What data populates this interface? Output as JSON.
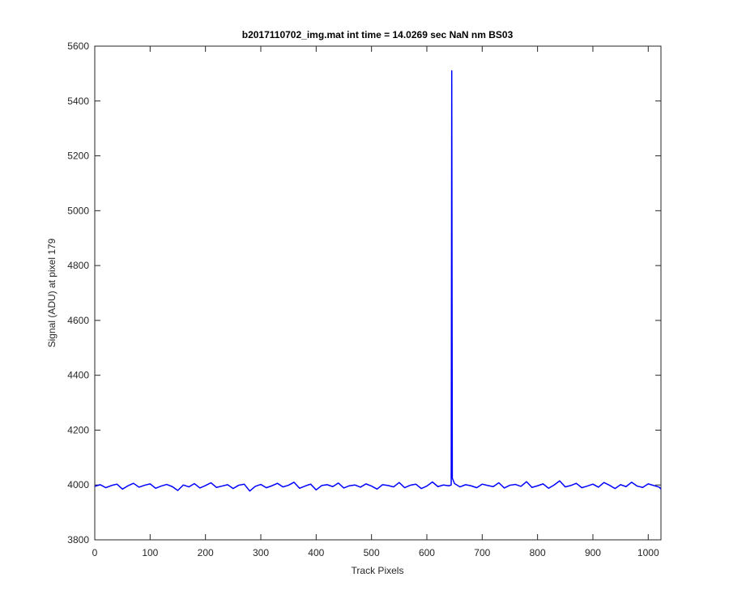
{
  "chart_data": {
    "type": "line",
    "title": "b2017110702_img.mat int time = 14.0269 sec  NaN nm BS03",
    "x_label": "Track Pixels",
    "y_label": "Signal (ADU) at pixel 179",
    "xlim": [
      0,
      1023
    ],
    "ylim": [
      3800,
      5600
    ],
    "xticks": [
      0,
      100,
      200,
      300,
      400,
      500,
      600,
      700,
      800,
      900,
      1000
    ],
    "yticks": [
      3800,
      4000,
      4200,
      4400,
      4600,
      4800,
      5000,
      5200,
      5400,
      5600
    ],
    "grid": false,
    "x": [
      0,
      10,
      20,
      30,
      40,
      50,
      60,
      70,
      80,
      90,
      100,
      110,
      120,
      130,
      140,
      150,
      160,
      170,
      180,
      190,
      200,
      210,
      220,
      230,
      240,
      250,
      260,
      270,
      280,
      290,
      300,
      310,
      320,
      330,
      340,
      350,
      360,
      370,
      380,
      390,
      400,
      410,
      420,
      430,
      440,
      450,
      460,
      470,
      480,
      490,
      500,
      510,
      520,
      530,
      540,
      550,
      560,
      570,
      580,
      590,
      600,
      610,
      620,
      630,
      640,
      644,
      645,
      646,
      650,
      660,
      670,
      680,
      690,
      700,
      710,
      720,
      730,
      740,
      750,
      760,
      770,
      780,
      790,
      800,
      810,
      820,
      830,
      840,
      850,
      860,
      870,
      880,
      890,
      900,
      910,
      920,
      930,
      940,
      950,
      960,
      970,
      980,
      990,
      1000,
      1010,
      1020,
      1023
    ],
    "series": [
      {
        "name": "signal",
        "color": "#0000ff",
        "values": [
          3995,
          4001,
          3990,
          3998,
          4003,
          3985,
          3997,
          4006,
          3992,
          3999,
          4004,
          3988,
          3996,
          4002,
          3994,
          3980,
          4000,
          3993,
          4005,
          3989,
          3998,
          4008,
          3991,
          3996,
          4001,
          3987,
          3999,
          4003,
          3978,
          3995,
          4002,
          3990,
          3997,
          4006,
          3993,
          3999,
          4010,
          3988,
          3996,
          4003,
          3982,
          3998,
          4001,
          3994,
          4007,
          3989,
          3997,
          4000,
          3992,
          4004,
          3996,
          3985,
          4001,
          3998,
          3993,
          4009,
          3990,
          3999,
          4003,
          3987,
          3996,
          4011,
          3994,
          4000,
          3997,
          4000,
          5510,
          4025,
          4005,
          3993,
          4001,
          3997,
          3990,
          4003,
          3998,
          3994,
          4008,
          3989,
          3999,
          4002,
          3995,
          4012,
          3991,
          3997,
          4004,
          3988,
          4000,
          4015,
          3993,
          3998,
          4006,
          3990,
          3996,
          4003,
          3992,
          4009,
          3999,
          3987,
          4001,
          3994,
          4010,
          3996,
          3991,
          4004,
          3998,
          3992,
          3985
        ]
      }
    ]
  }
}
